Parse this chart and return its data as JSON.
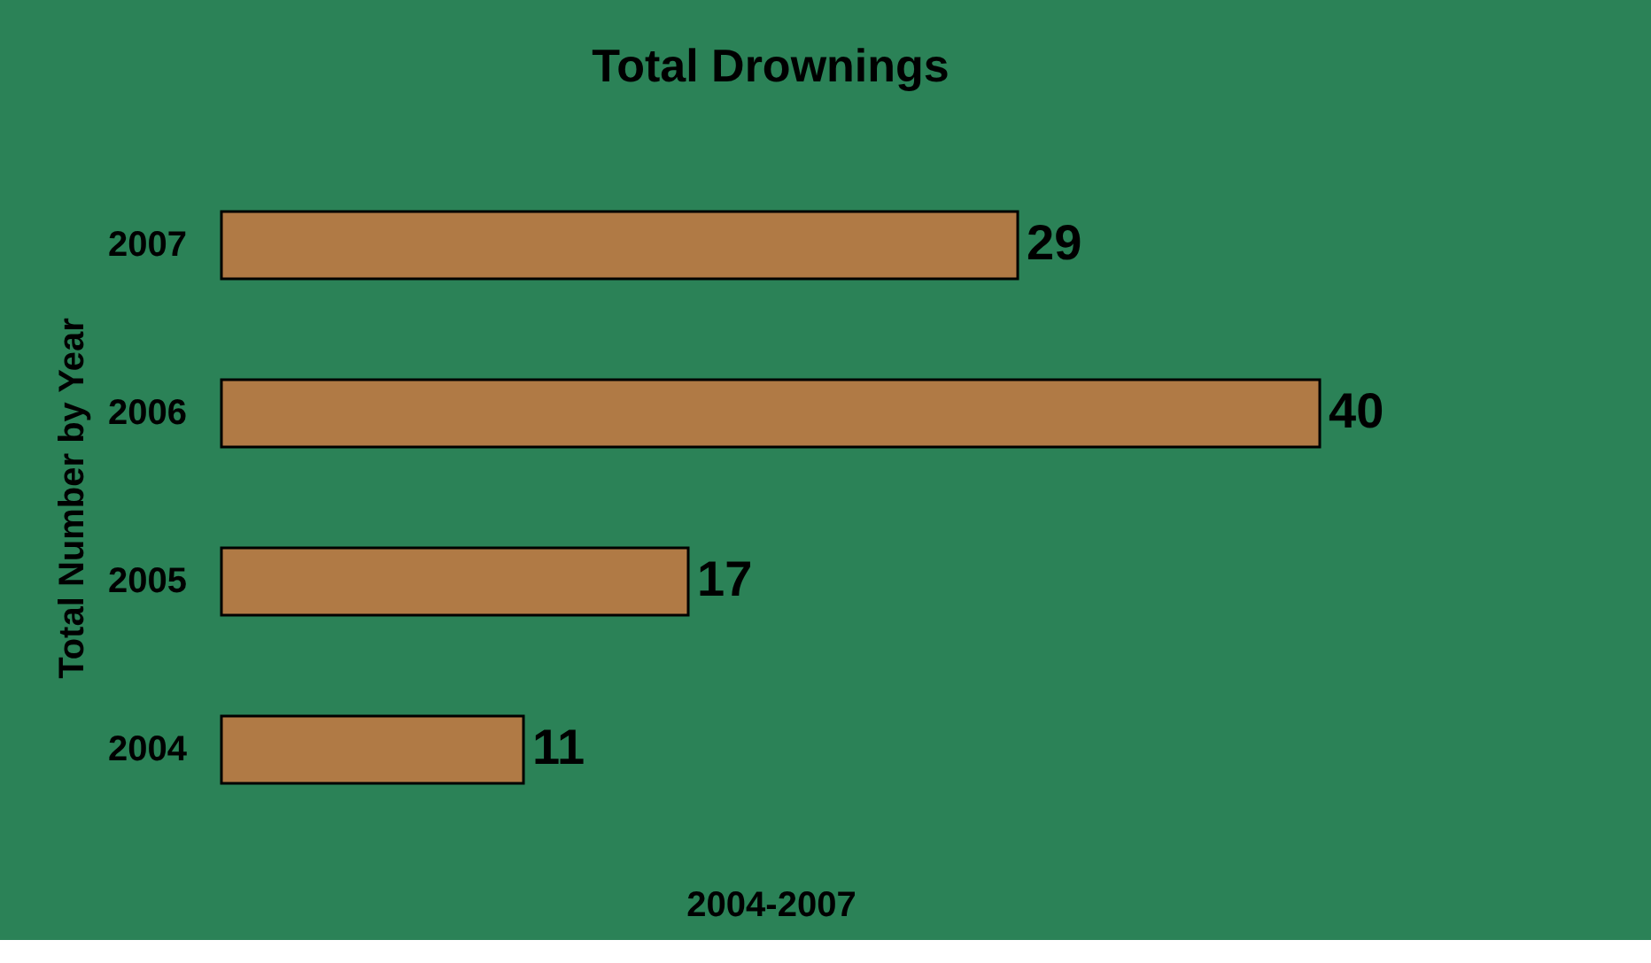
{
  "chart_data": {
    "type": "bar",
    "orientation": "horizontal",
    "title": "Total Drownings",
    "xlabel": "2004-2007",
    "ylabel": "Total Number by Year",
    "categories": [
      "2007",
      "2006",
      "2005",
      "2004"
    ],
    "values": [
      29,
      40,
      17,
      11
    ],
    "color": "#b07a45",
    "data_labels": true,
    "grid": false,
    "tick_labels": "y"
  }
}
